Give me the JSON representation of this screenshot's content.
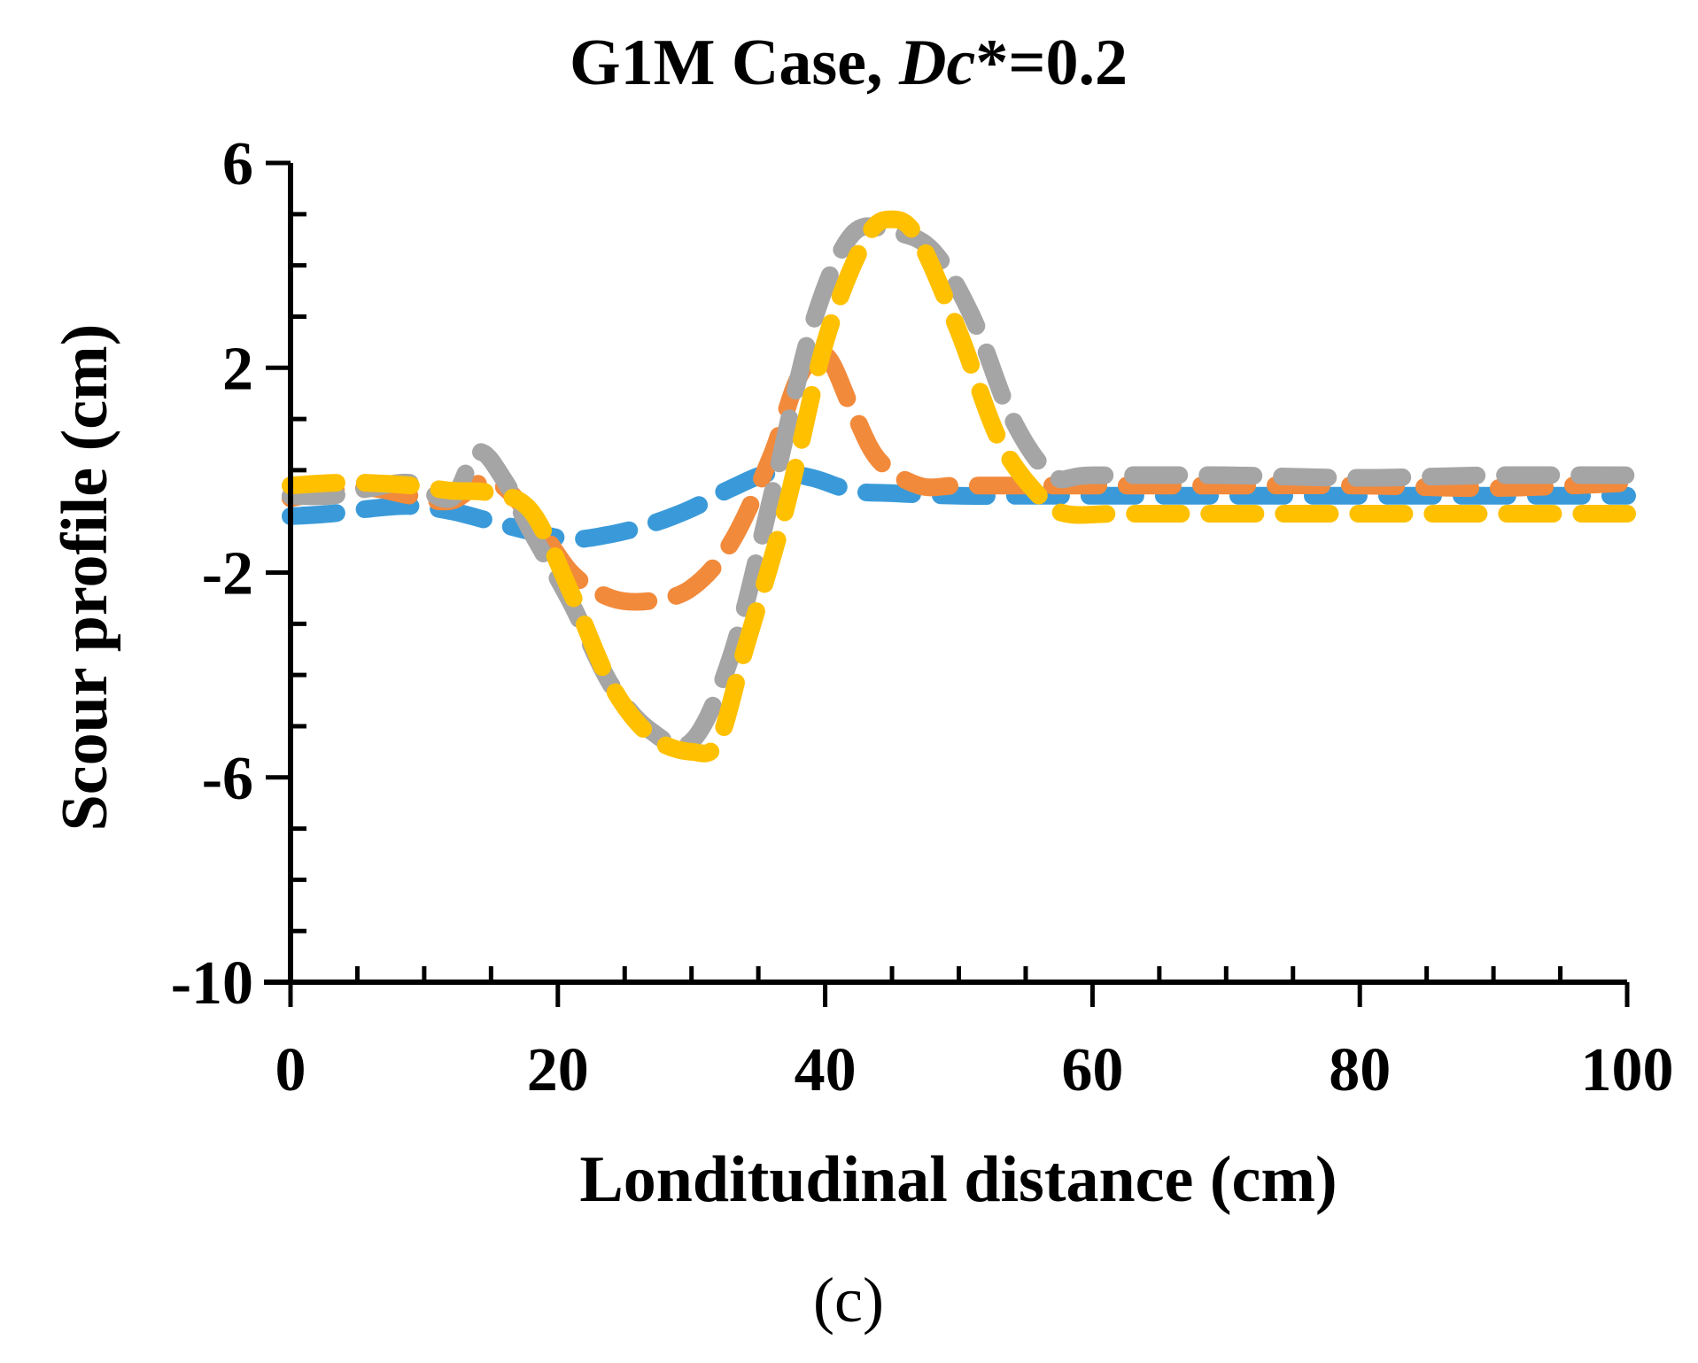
{
  "chart_data": {
    "type": "line",
    "title": "G1M Case, ",
    "title_italic": "Dc",
    "title_suffix": "*=0.2",
    "xlabel": "Londitudinal distance (cm)",
    "ylabel": "Scour profile (cm)",
    "caption": "(c)",
    "xlim": [
      0,
      100
    ],
    "ylim": [
      -10,
      6
    ],
    "xticks": [
      0,
      20,
      40,
      60,
      80,
      100
    ],
    "yticks": [
      6,
      2,
      -2,
      -6,
      -10
    ],
    "x_minor_step": 5,
    "y_minor_step": 1,
    "series": [
      {
        "color": "#3a9ad9",
        "x": [
          0,
          3,
          6,
          9,
          12,
          15,
          18,
          21,
          24,
          27,
          30,
          33,
          36,
          39,
          42,
          45,
          50,
          55,
          60,
          70,
          80,
          90,
          100
        ],
        "y": [
          -0.9,
          -0.85,
          -0.75,
          -0.7,
          -0.8,
          -1.0,
          -1.2,
          -1.35,
          -1.25,
          -1.05,
          -0.75,
          -0.35,
          -0.05,
          -0.15,
          -0.4,
          -0.45,
          -0.5,
          -0.5,
          -0.5,
          -0.5,
          -0.5,
          -0.5,
          -0.5
        ]
      },
      {
        "color": "#f28a3c",
        "x": [
          0,
          3,
          6,
          9,
          12,
          15,
          18,
          21,
          24,
          27,
          30,
          33,
          36,
          38,
          40,
          42,
          44,
          47,
          50,
          55,
          60,
          70,
          80,
          90,
          100
        ],
        "y": [
          -0.55,
          -0.4,
          -0.35,
          -0.5,
          -0.6,
          -0.2,
          -0.9,
          -2.0,
          -2.5,
          -2.55,
          -2.3,
          -1.4,
          0.3,
          1.8,
          2.25,
          1.2,
          0.2,
          -0.3,
          -0.3,
          -0.3,
          -0.3,
          -0.3,
          -0.3,
          -0.35,
          -0.25
        ]
      },
      {
        "color": "#a5a5a5",
        "x": [
          0,
          3,
          6,
          9,
          12,
          14,
          16,
          18,
          21,
          24,
          27,
          30,
          33,
          36,
          39,
          42,
          45,
          48,
          51,
          54,
          57,
          60,
          70,
          80,
          90,
          100
        ],
        "y": [
          -0.5,
          -0.5,
          -0.35,
          -0.25,
          -0.55,
          0.35,
          -0.2,
          -1.2,
          -2.6,
          -4.2,
          -5.1,
          -5.3,
          -3.6,
          -0.5,
          2.8,
          4.6,
          4.65,
          4.3,
          3.0,
          1.0,
          -0.1,
          -0.1,
          -0.1,
          -0.15,
          -0.1,
          -0.1
        ]
      },
      {
        "color": "#ffc000",
        "x": [
          0,
          3,
          6,
          9,
          12,
          15,
          18,
          21,
          24,
          27,
          30,
          32,
          34,
          37,
          40,
          43,
          45,
          47,
          50,
          53,
          56,
          58,
          62,
          70,
          80,
          90,
          100
        ],
        "y": [
          -0.3,
          -0.25,
          -0.25,
          -0.3,
          -0.4,
          -0.45,
          -0.8,
          -2.4,
          -4.2,
          -5.2,
          -5.5,
          -5.3,
          -3.5,
          -0.8,
          2.5,
          4.5,
          4.9,
          4.5,
          2.7,
          0.6,
          -0.5,
          -0.85,
          -0.85,
          -0.85,
          -0.85,
          -0.85,
          -0.85
        ]
      }
    ]
  }
}
